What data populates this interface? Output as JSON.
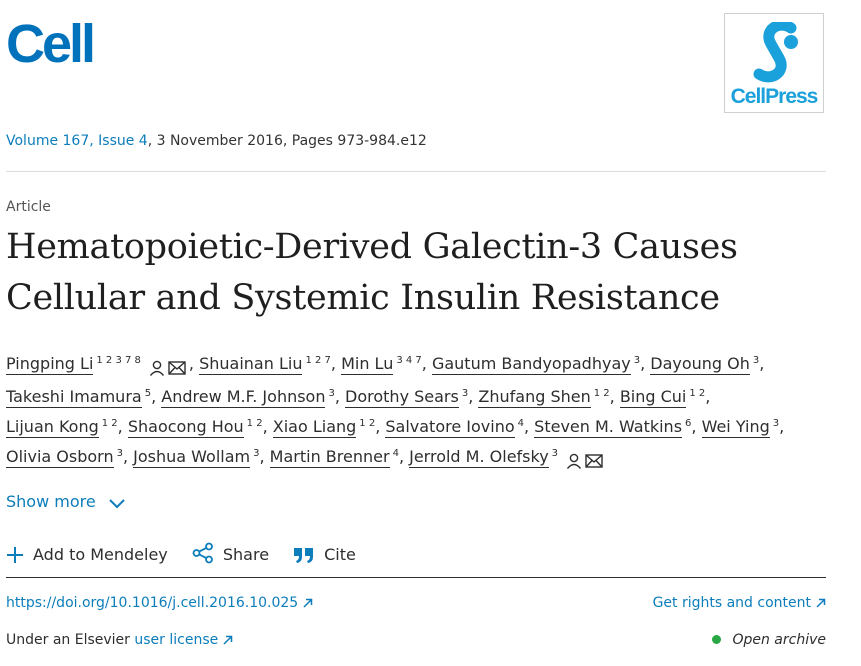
{
  "header": {
    "journal_logo": "Cell",
    "publisher_logo": "CellPress"
  },
  "issue": {
    "link": "Volume 167, Issue 4",
    "rest": ", 3 November 2016, Pages 973-984.e12"
  },
  "article": {
    "type": "Article",
    "title": "Hematopoietic-Derived Galectin-3 Causes Cellular and Systemic Insulin Resistance"
  },
  "authors": [
    {
      "name": "Pingping Li",
      "aff": "1 2 3 7 8",
      "icons": true
    },
    {
      "name": "Shuainan Liu",
      "aff": "1 2 7"
    },
    {
      "name": "Min Lu",
      "aff": "3 4 7"
    },
    {
      "name": "Gautum Bandyopadhyay",
      "aff": "3"
    },
    {
      "name": "Dayoung Oh",
      "aff": "3"
    },
    {
      "name": "Takeshi Imamura",
      "aff": "5"
    },
    {
      "name": "Andrew M.F. Johnson",
      "aff": "3"
    },
    {
      "name": "Dorothy Sears",
      "aff": "3"
    },
    {
      "name": "Zhufang Shen",
      "aff": "1 2"
    },
    {
      "name": "Bing Cui",
      "aff": "1 2"
    },
    {
      "name": "Lijuan Kong",
      "aff": "1 2"
    },
    {
      "name": "Shaocong Hou",
      "aff": "1 2"
    },
    {
      "name": "Xiao Liang",
      "aff": "1 2"
    },
    {
      "name": "Salvatore Iovino",
      "aff": "4"
    },
    {
      "name": "Steven M. Watkins",
      "aff": "6"
    },
    {
      "name": "Wei Ying",
      "aff": "3"
    },
    {
      "name": "Olivia Osborn",
      "aff": "3"
    },
    {
      "name": "Joshua Wollam",
      "aff": "3"
    },
    {
      "name": "Martin Brenner",
      "aff": "4"
    },
    {
      "name": "Jerrold M. Olefsky",
      "aff": "3",
      "icons": true
    }
  ],
  "show_more": "Show more",
  "actions": {
    "mendeley": "Add to Mendeley",
    "share": "Share",
    "cite": "Cite"
  },
  "doi": "https://doi.org/10.1016/j.cell.2016.10.025",
  "rights": "Get rights and content",
  "license": {
    "prefix": "Under an Elsevier ",
    "link": "user license"
  },
  "access": "Open archive",
  "colors": {
    "link": "#0c7dbb",
    "cell_blue": "#0072bc",
    "cellpress_blue": "#1aa0da",
    "open_archive_green": "#29a745"
  }
}
